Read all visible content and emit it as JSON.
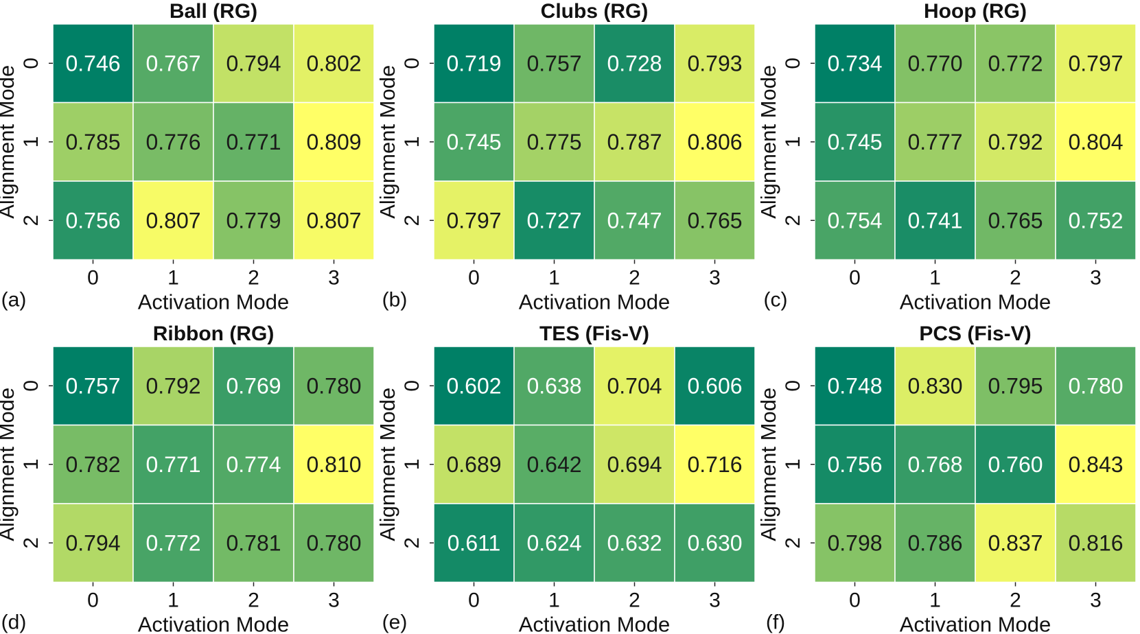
{
  "chart_data": [
    {
      "type": "heatmap",
      "panel_label": "(a)",
      "title": "Ball (RG)",
      "xlabel": "Activation Mode",
      "ylabel": "Alignment Mode",
      "x_ticks": [
        "0",
        "1",
        "2",
        "3"
      ],
      "y_ticks": [
        "0",
        "1",
        "2"
      ],
      "values": [
        [
          0.746,
          0.767,
          0.794,
          0.802
        ],
        [
          0.785,
          0.776,
          0.771,
          0.809
        ],
        [
          0.756,
          0.807,
          0.779,
          0.807
        ]
      ],
      "labels": [
        [
          "0.746",
          "0.767",
          "0.794",
          "0.802"
        ],
        [
          "0.785",
          "0.776",
          "0.771",
          "0.809"
        ],
        [
          "0.756",
          "0.807",
          "0.779",
          "0.807"
        ]
      ]
    },
    {
      "type": "heatmap",
      "panel_label": "(b)",
      "title": "Clubs (RG)",
      "xlabel": "Activation Mode",
      "ylabel": "Alignment Mode",
      "x_ticks": [
        "0",
        "1",
        "2",
        "3"
      ],
      "y_ticks": [
        "0",
        "1",
        "2"
      ],
      "values": [
        [
          0.719,
          0.757,
          0.728,
          0.793
        ],
        [
          0.745,
          0.775,
          0.787,
          0.806
        ],
        [
          0.797,
          0.727,
          0.747,
          0.765
        ]
      ],
      "labels": [
        [
          "0.719",
          "0.757",
          "0.728",
          "0.793"
        ],
        [
          "0.745",
          "0.775",
          "0.787",
          "0.806"
        ],
        [
          "0.797",
          "0.727",
          "0.747",
          "0.765"
        ]
      ]
    },
    {
      "type": "heatmap",
      "panel_label": "(c)",
      "title": "Hoop (RG)",
      "xlabel": "Activation Mode",
      "ylabel": "Alignment Mode",
      "x_ticks": [
        "0",
        "1",
        "2",
        "3"
      ],
      "y_ticks": [
        "0",
        "1",
        "2"
      ],
      "values": [
        [
          0.734,
          0.77,
          0.772,
          0.797
        ],
        [
          0.745,
          0.777,
          0.792,
          0.804
        ],
        [
          0.754,
          0.741,
          0.765,
          0.752
        ]
      ],
      "labels": [
        [
          "0.734",
          "0.770",
          "0.772",
          "0.797"
        ],
        [
          "0.745",
          "0.777",
          "0.792",
          "0.804"
        ],
        [
          "0.754",
          "0.741",
          "0.765",
          "0.752"
        ]
      ]
    },
    {
      "type": "heatmap",
      "panel_label": "(d)",
      "title": "Ribbon (RG)",
      "xlabel": "Activation Mode",
      "ylabel": "Alignment Mode",
      "x_ticks": [
        "0",
        "1",
        "2",
        "3"
      ],
      "y_ticks": [
        "0",
        "1",
        "2"
      ],
      "values": [
        [
          0.757,
          0.792,
          0.769,
          0.78
        ],
        [
          0.782,
          0.771,
          0.774,
          0.81
        ],
        [
          0.794,
          0.772,
          0.781,
          0.78
        ]
      ],
      "labels": [
        [
          "0.757",
          "0.792",
          "0.769",
          "0.780"
        ],
        [
          "0.782",
          "0.771",
          "0.774",
          "0.810"
        ],
        [
          "0.794",
          "0.772",
          "0.781",
          "0.780"
        ]
      ]
    },
    {
      "type": "heatmap",
      "panel_label": "(e)",
      "title": "TES (Fis-V)",
      "xlabel": "Activation Mode",
      "ylabel": "Alignment Mode",
      "x_ticks": [
        "0",
        "1",
        "2",
        "3"
      ],
      "y_ticks": [
        "0",
        "1",
        "2"
      ],
      "values": [
        [
          0.602,
          0.638,
          0.704,
          0.606
        ],
        [
          0.689,
          0.642,
          0.694,
          0.716
        ],
        [
          0.611,
          0.624,
          0.632,
          0.63
        ]
      ],
      "labels": [
        [
          "0.602",
          "0.638",
          "0.704",
          "0.606"
        ],
        [
          "0.689",
          "0.642",
          "0.694",
          "0.716"
        ],
        [
          "0.611",
          "0.624",
          "0.632",
          "0.630"
        ]
      ]
    },
    {
      "type": "heatmap",
      "panel_label": "(f)",
      "title": "PCS (Fis-V)",
      "xlabel": "Activation Mode",
      "ylabel": "Alignment Mode",
      "x_ticks": [
        "0",
        "1",
        "2",
        "3"
      ],
      "y_ticks": [
        "0",
        "1",
        "2"
      ],
      "values": [
        [
          0.748,
          0.83,
          0.795,
          0.78
        ],
        [
          0.756,
          0.768,
          0.76,
          0.843
        ],
        [
          0.798,
          0.786,
          0.837,
          0.816
        ]
      ],
      "labels": [
        [
          "0.748",
          "0.830",
          "0.795",
          "0.780"
        ],
        [
          "0.756",
          "0.768",
          "0.760",
          "0.843"
        ],
        [
          "0.798",
          "0.786",
          "0.837",
          "0.816"
        ]
      ]
    }
  ],
  "colormap": "summer_r",
  "colormap_stops": [
    "#ffff66",
    "#008066"
  ],
  "text_colors": {
    "light": "#ffffff",
    "dark": "#1a1a1a"
  },
  "grid_line_color": "#ffffff"
}
